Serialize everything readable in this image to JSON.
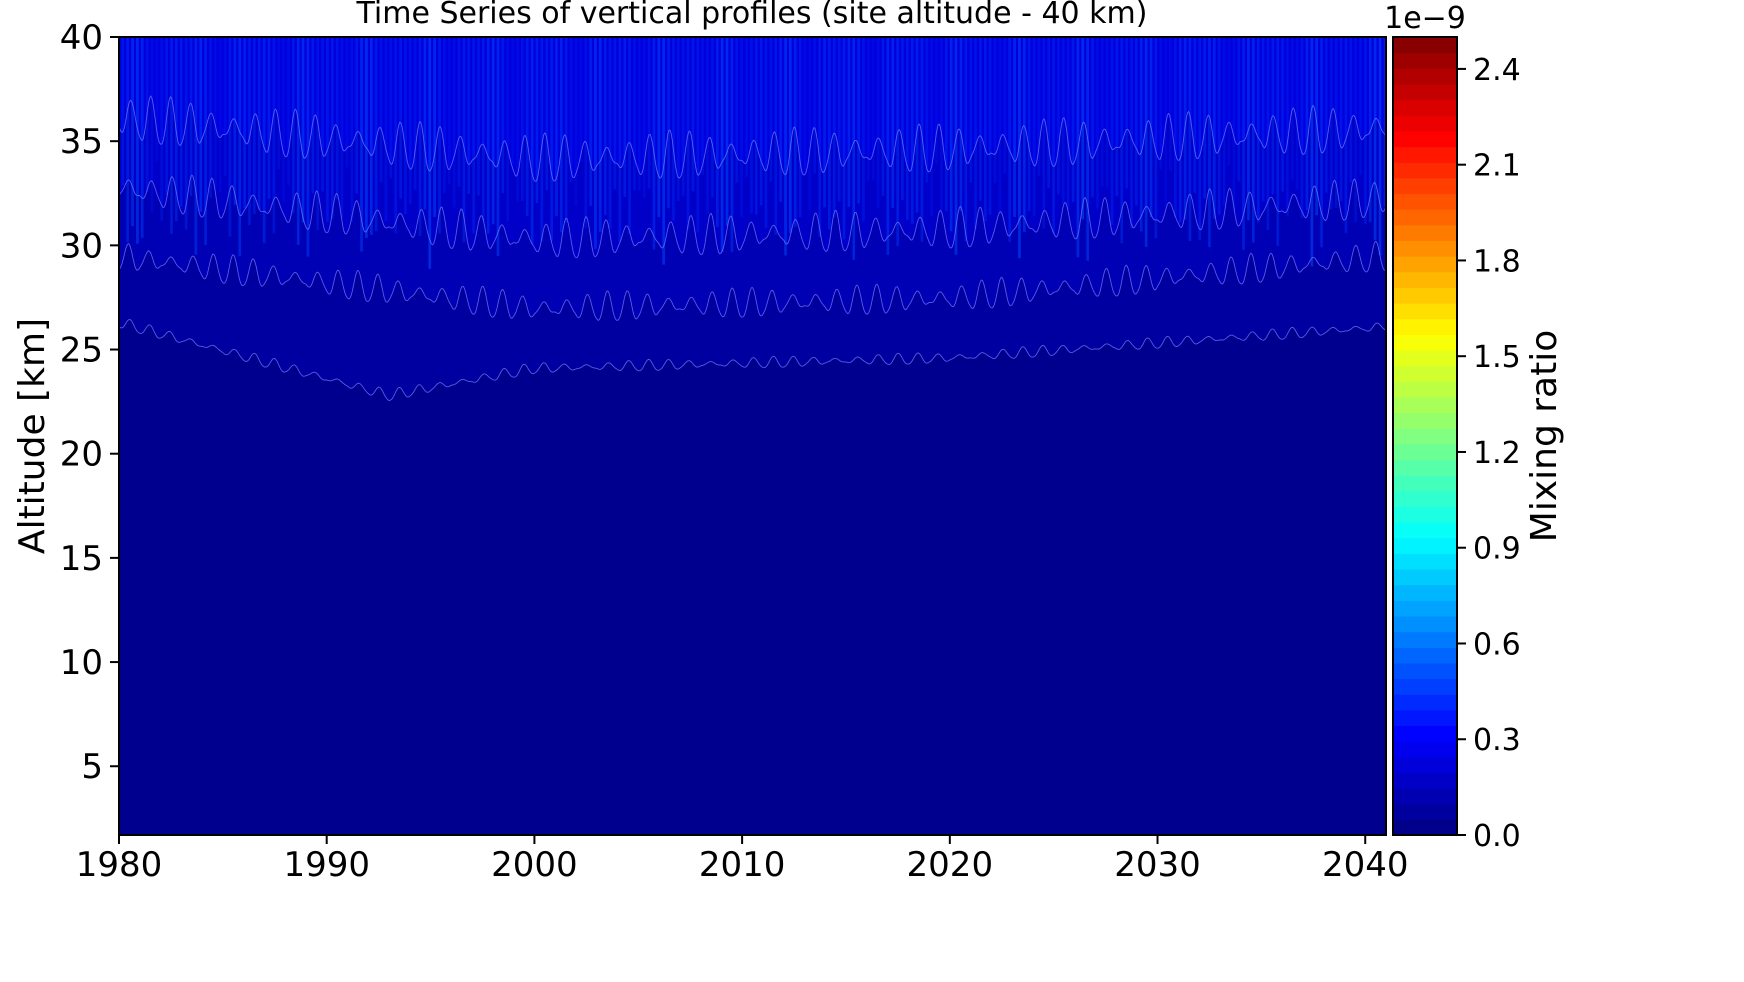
{
  "chart_data": {
    "type": "heatmap",
    "title": "Time Series of vertical profiles (site altitude - 40 km)",
    "xlabel": "",
    "ylabel": "Altitude [km]",
    "xlim": [
      1980,
      2041
    ],
    "ylim": [
      1.7,
      40
    ],
    "x_ticks": [
      1980,
      1990,
      2000,
      2010,
      2020,
      2030,
      2040
    ],
    "y_ticks": [
      5,
      10,
      15,
      20,
      25,
      30,
      35,
      40
    ],
    "colormap": "jet",
    "colorbar": {
      "label": "Mixing ratio",
      "offset_text": "1e−9",
      "range": [
        0.0,
        2.5
      ],
      "ticks": [
        0.0,
        0.3,
        0.6,
        0.9,
        1.2,
        1.5,
        1.8,
        2.1,
        2.4
      ],
      "tick_labels": [
        "0.0",
        "0.3",
        "0.6",
        "0.9",
        "1.2",
        "1.5",
        "1.8",
        "2.1",
        "2.4"
      ],
      "levels": 51
    },
    "contour_boundaries_km": [
      {
        "level": 0.05,
        "altitude_start": 26.5,
        "altitude_min_1993": 23.0,
        "altitude_2000": 24.3,
        "altitude_2020": 24.8,
        "altitude_end": 26.3,
        "seasonal_amplitude": 0.6
      },
      {
        "level": 0.1,
        "altitude_start": 30.0,
        "altitude_2000": 27.5,
        "altitude_2020": 28.0,
        "altitude_end": 30.0,
        "seasonal_amplitude": 1.6
      },
      {
        "level": 0.15,
        "altitude_start": 33.5,
        "altitude_2000": 31.0,
        "altitude_2020": 31.5,
        "altitude_end": 33.0,
        "seasonal_amplitude": 2.2
      },
      {
        "level": 0.2,
        "altitude_start": 37.0,
        "altitude_2000": 35.0,
        "altitude_2020": 35.5,
        "altitude_end": 36.5,
        "seasonal_amplitude": 2.6
      }
    ],
    "colors": {
      "background": "#00008f",
      "contour_line": "#7f7fff"
    }
  }
}
